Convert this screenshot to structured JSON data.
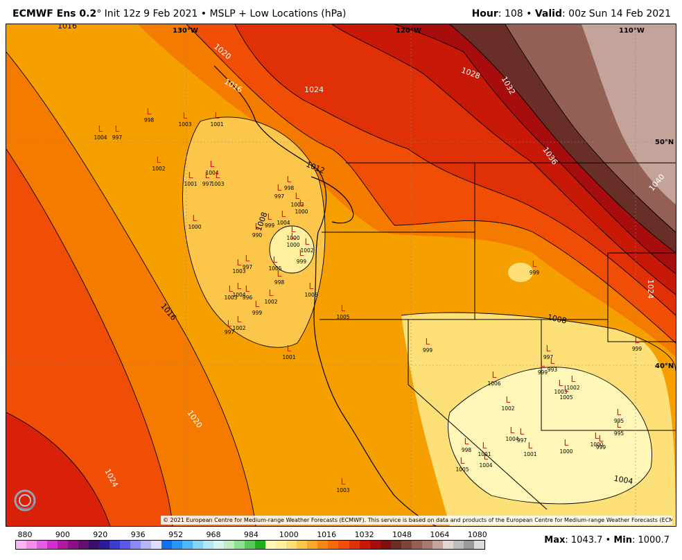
{
  "header": {
    "model": "ECMWF Ens 0.2",
    "degree": "°",
    "init": "Init 12z 9 Feb 2021",
    "bullet": "•",
    "field": "MSLP + Low Locations (hPa)",
    "hour_label": "Hour",
    "hour_value": ": 108",
    "valid_label": "Valid",
    "valid_value": ": 00z Sun 14 Feb 2021"
  },
  "map": {
    "lon_labels": [
      "130°W",
      "120°W",
      "110°W"
    ],
    "lat_labels": [
      "50°N",
      "40°N"
    ],
    "isobar_labels": [
      "1016",
      "1020",
      "1016",
      "1024",
      "1012",
      "1028",
      "1032",
      "1036",
      "1040",
      "1024",
      "1008",
      "1008",
      "1016",
      "1020",
      "1024",
      "1004"
    ],
    "lows": [
      {
        "s": "L",
        "v": "998"
      },
      {
        "s": "L",
        "v": "1003"
      },
      {
        "s": "L",
        "v": "1001"
      },
      {
        "s": "L",
        "v": "1004"
      },
      {
        "s": "L",
        "v": "1002"
      },
      {
        "s": "L",
        "v": "1004"
      },
      {
        "s": "L",
        "v": "1003"
      },
      {
        "s": "L",
        "v": "1001"
      },
      {
        "s": "L",
        "v": "997"
      },
      {
        "s": "L",
        "v": "998"
      },
      {
        "s": "L",
        "v": "997"
      },
      {
        "s": "L",
        "v": "1003"
      },
      {
        "s": "L",
        "v": "1000"
      },
      {
        "s": "L",
        "v": "1004"
      },
      {
        "s": "L",
        "v": "999"
      },
      {
        "s": "L",
        "v": "990"
      },
      {
        "s": "L",
        "v": "1000"
      },
      {
        "s": "L",
        "v": "1000"
      },
      {
        "s": "L",
        "v": "1002"
      },
      {
        "s": "L",
        "v": "999"
      },
      {
        "s": "L",
        "v": "1003"
      },
      {
        "s": "L",
        "v": "997"
      },
      {
        "s": "L",
        "v": "1005"
      },
      {
        "s": "L",
        "v": "998"
      },
      {
        "s": "L",
        "v": "1004"
      },
      {
        "s": "L",
        "v": "1003"
      },
      {
        "s": "L",
        "v": "996"
      },
      {
        "s": "L",
        "v": "1002"
      },
      {
        "s": "L",
        "v": "999"
      },
      {
        "s": "L",
        "v": "1005"
      },
      {
        "s": "L",
        "v": "1005"
      },
      {
        "s": "L",
        "v": "997"
      },
      {
        "s": "L",
        "v": "1002"
      },
      {
        "s": "L",
        "v": "1001"
      },
      {
        "s": "L",
        "v": "999"
      },
      {
        "s": "L",
        "v": "999"
      },
      {
        "s": "L",
        "v": "997"
      },
      {
        "s": "L",
        "v": "993"
      },
      {
        "s": "L",
        "v": "1006"
      },
      {
        "s": "L",
        "v": "1002"
      },
      {
        "s": "L",
        "v": "1003"
      },
      {
        "s": "L",
        "v": "1005"
      },
      {
        "s": "L",
        "v": "1002"
      },
      {
        "s": "L",
        "v": "995"
      },
      {
        "s": "L",
        "v": "995"
      },
      {
        "s": "L",
        "v": "1000"
      },
      {
        "s": "L",
        "v": "999"
      },
      {
        "s": "L",
        "v": "1000"
      },
      {
        "s": "L",
        "v": "1004"
      },
      {
        "s": "L",
        "v": "997"
      },
      {
        "s": "L",
        "v": "999"
      },
      {
        "s": "L",
        "v": "1001"
      },
      {
        "s": "L",
        "v": "998"
      },
      {
        "s": "L",
        "v": "1001"
      },
      {
        "s": "L",
        "v": "1005"
      },
      {
        "s": "L",
        "v": "1004"
      },
      {
        "s": "L",
        "v": "999"
      },
      {
        "s": "L",
        "v": "1003"
      },
      {
        "s": "L",
        "v": "997"
      },
      {
        "s": "L",
        "v": "1000"
      }
    ],
    "copyright": "© 2021 European Centre for Medium-range Weather Forecasts (ECMWF). This service is based on data and products of the European Centre for Medium-range Weather Forecasts (ECMWF).",
    "logo_text": "WEATHERBELL"
  },
  "colorbar": {
    "ticks": [
      "880",
      "900",
      "920",
      "936",
      "952",
      "968",
      "984",
      "1000",
      "1016",
      "1032",
      "1048",
      "1064",
      "1080"
    ],
    "colors": [
      "#f7b6f2",
      "#f08fe8",
      "#e35fe0",
      "#cf2fcf",
      "#b0189e",
      "#8a0f88",
      "#62106e",
      "#3b0f6e",
      "#2d1a9a",
      "#3b3bd0",
      "#5a5ae6",
      "#8a8af2",
      "#b6b6f7",
      "#dedefc",
      "#1070ee",
      "#2596f5",
      "#4fb6f8",
      "#86d3f8",
      "#b4e6f6",
      "#d7f3ef",
      "#c0ecc4",
      "#90de90",
      "#58c858",
      "#1fad1f",
      "#fff7b8",
      "#fff0a0",
      "#fde078",
      "#fbc64a",
      "#f7a828",
      "#f58814",
      "#f56a0a",
      "#f04e06",
      "#e03008",
      "#c81808",
      "#a80d0d",
      "#801010",
      "#6a2e28",
      "#7e4438",
      "#946055",
      "#a87970",
      "#c4a39a",
      "#e2d6d2",
      "#bcbcbc",
      "#9a9a9a",
      "#dcdcdc"
    ]
  },
  "stats": {
    "max_label": "Max",
    "max_value": ": 1043.7",
    "sep": "•",
    "min_label": "Min",
    "min_value": ": 1000.7"
  }
}
